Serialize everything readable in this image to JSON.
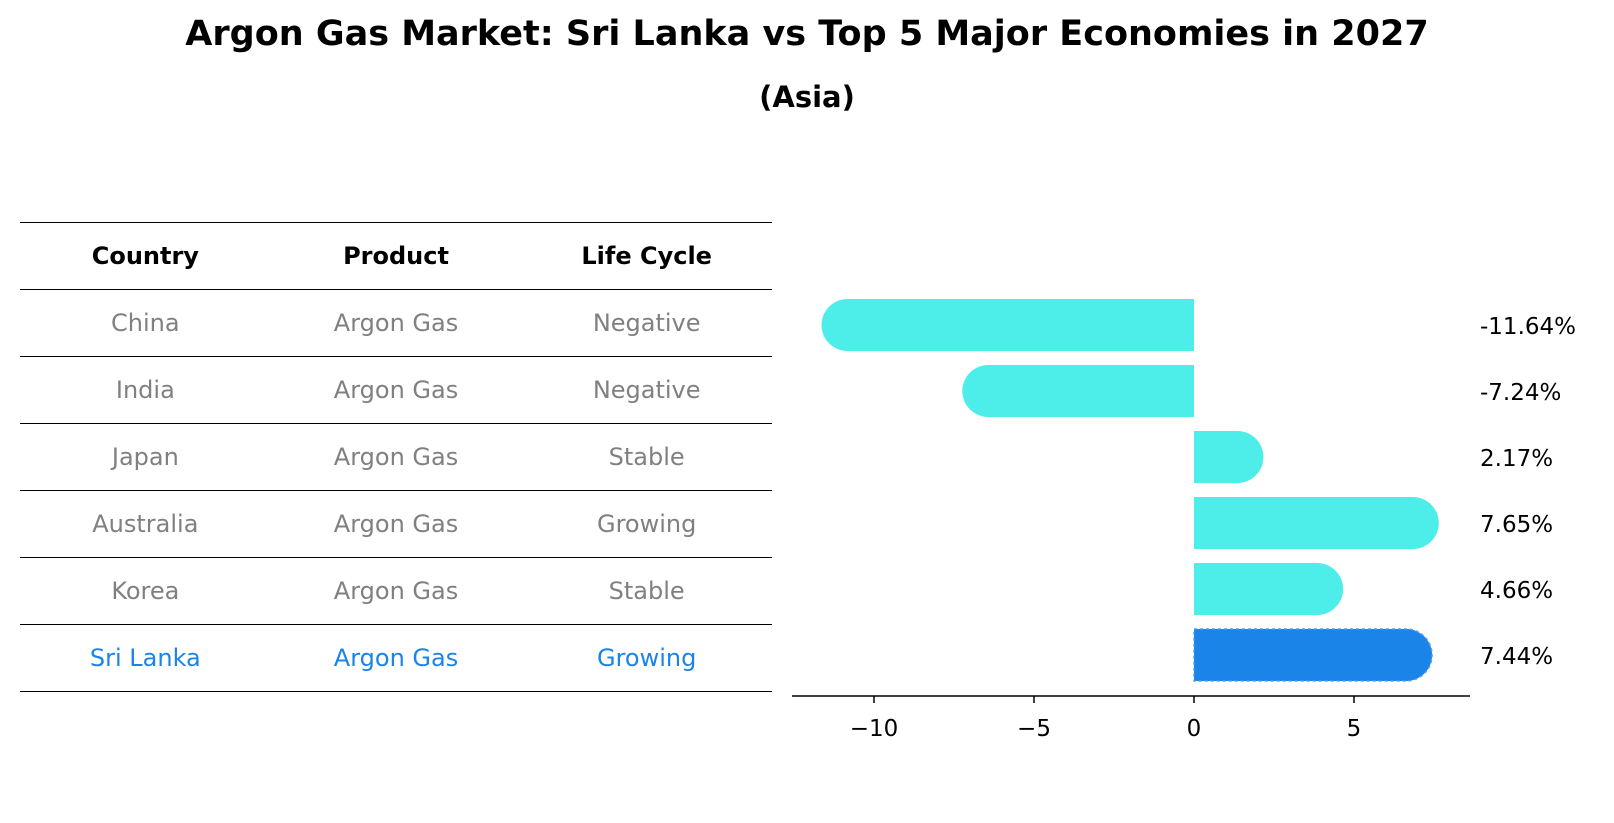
{
  "title": "Argon Gas Market: Sri Lanka vs Top 5 Major Economies in 2027",
  "subtitle": "(Asia)",
  "table": {
    "headers": [
      "Country",
      "Product",
      "Life Cycle"
    ],
    "rows": [
      [
        "China",
        "Argon Gas",
        "Negative"
      ],
      [
        "India",
        "Argon Gas",
        "Negative"
      ],
      [
        "Japan",
        "Argon Gas",
        "Stable"
      ],
      [
        "Australia",
        "Argon Gas",
        "Growing"
      ],
      [
        "Korea",
        "Argon Gas",
        "Stable"
      ],
      [
        "Sri Lanka",
        "Argon Gas",
        "Growing"
      ]
    ],
    "highlight_row": 5
  },
  "colors": {
    "bar": "#4deeea",
    "highlight": "#1a84e8",
    "muted_text": "#808080"
  },
  "chart_data": {
    "type": "bar",
    "orientation": "horizontal",
    "categories": [
      "China",
      "India",
      "Japan",
      "Australia",
      "Korea",
      "Sri Lanka"
    ],
    "values": [
      -11.64,
      -7.24,
      2.17,
      7.65,
      4.66,
      7.44
    ],
    "value_labels": [
      "-11.64%",
      "-7.24%",
      "2.17%",
      "7.65%",
      "4.66%",
      "7.44%"
    ],
    "xticks": [
      -10,
      -5,
      0,
      5
    ],
    "xtick_labels": [
      "−10",
      "−5",
      "0",
      "5"
    ],
    "xlim": [
      -12.5,
      8.5
    ],
    "highlight_index": 5
  }
}
